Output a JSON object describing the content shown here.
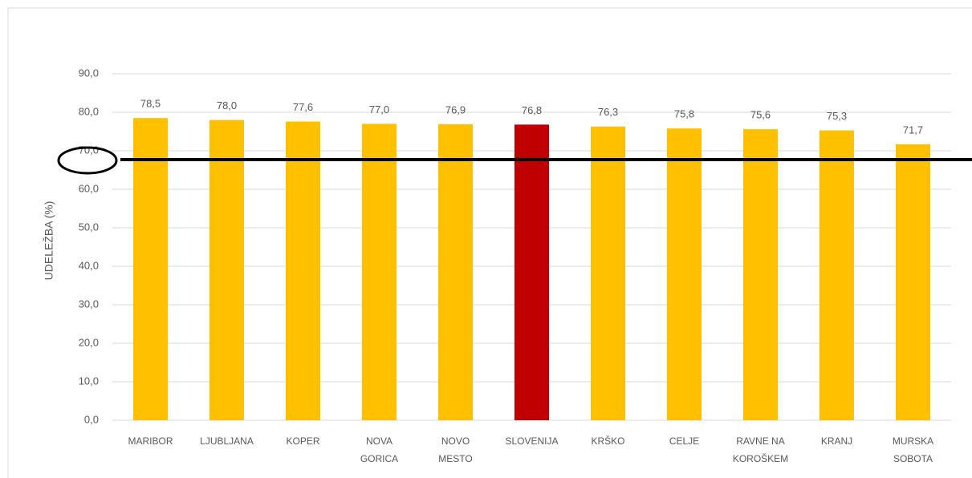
{
  "chart_data": {
    "type": "bar",
    "y_label": "UDELEŽBA (%)",
    "categories": [
      "MARIBOR",
      "LJUBLJANA",
      "KOPER",
      "NOVA GORICA",
      "NOVO MESTO",
      "SLOVENIJA",
      "KRŠKO",
      "CELJE",
      "RAVNE NA KOROŠKEM",
      "KRANJ",
      "MURSKA SOBOTA"
    ],
    "values": [
      78.5,
      78.0,
      77.6,
      77.0,
      76.9,
      76.8,
      76.3,
      75.8,
      75.6,
      75.3,
      71.7
    ],
    "value_labels": [
      "78,5",
      "78,0",
      "77,6",
      "77,0",
      "76,9",
      "76,8",
      "76,3",
      "75,8",
      "75,6",
      "75,3",
      "71,7"
    ],
    "colors": [
      "#ffc000",
      "#ffc000",
      "#ffc000",
      "#ffc000",
      "#ffc000",
      "#c00000",
      "#ffc000",
      "#ffc000",
      "#ffc000",
      "#ffc000",
      "#ffc000"
    ],
    "ylim": [
      0,
      90
    ],
    "yticks": [
      {
        "value": 0,
        "label": "0,0"
      },
      {
        "value": 10,
        "label": "10,0"
      },
      {
        "value": 20,
        "label": "20,0"
      },
      {
        "value": 30,
        "label": "30,0"
      },
      {
        "value": 40,
        "label": "40,0"
      },
      {
        "value": 50,
        "label": "50,0"
      },
      {
        "value": 60,
        "label": "60,0"
      },
      {
        "value": 70,
        "label": "70,0"
      },
      {
        "value": 80,
        "label": "80,0"
      },
      {
        "value": 90,
        "label": "90,0"
      }
    ],
    "grid": true
  }
}
